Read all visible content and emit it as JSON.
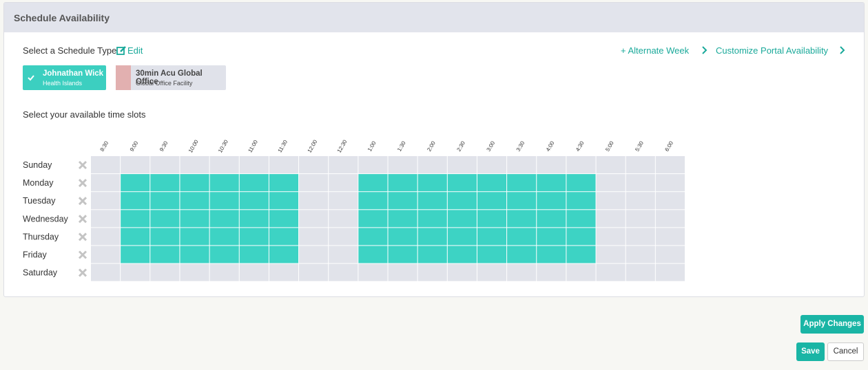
{
  "header": {
    "title": "Schedule Availability"
  },
  "schedule_type": {
    "label": "Select a Schedule Type",
    "edit": "Edit",
    "links": [
      "+ Alternate Week",
      "Customize Portal Availability"
    ],
    "options": [
      {
        "name": "Johnathan Wick",
        "subtitle": "Health Islands",
        "selected": true
      },
      {
        "name": "30min Acu Global Office",
        "subtitle": "Global Office Facility",
        "selected": false
      }
    ]
  },
  "slots": {
    "label": "Select your available time slots",
    "times": [
      "8:30",
      "9:00",
      "9:30",
      "10:00",
      "10:30",
      "11:00",
      "11:30",
      "12:00",
      "12:30",
      "1:00",
      "1:30",
      "2:00",
      "2:30",
      "3:00",
      "3:30",
      "4:00",
      "4:30",
      "5:00",
      "5:30",
      "6:00"
    ],
    "days": [
      {
        "name": "Sunday",
        "selected": [
          0,
          0,
          0,
          0,
          0,
          0,
          0,
          0,
          0,
          0,
          0,
          0,
          0,
          0,
          0,
          0,
          0,
          0,
          0,
          0
        ]
      },
      {
        "name": "Monday",
        "selected": [
          0,
          1,
          1,
          1,
          1,
          1,
          1,
          0,
          0,
          1,
          1,
          1,
          1,
          1,
          1,
          1,
          1,
          0,
          0,
          0
        ]
      },
      {
        "name": "Tuesday",
        "selected": [
          0,
          1,
          1,
          1,
          1,
          1,
          1,
          0,
          0,
          1,
          1,
          1,
          1,
          1,
          1,
          1,
          1,
          0,
          0,
          0
        ]
      },
      {
        "name": "Wednesday",
        "selected": [
          0,
          1,
          1,
          1,
          1,
          1,
          1,
          0,
          0,
          1,
          1,
          1,
          1,
          1,
          1,
          1,
          1,
          0,
          0,
          0
        ]
      },
      {
        "name": "Thursday",
        "selected": [
          0,
          1,
          1,
          1,
          1,
          1,
          1,
          0,
          0,
          1,
          1,
          1,
          1,
          1,
          1,
          1,
          1,
          0,
          0,
          0
        ]
      },
      {
        "name": "Friday",
        "selected": [
          0,
          1,
          1,
          1,
          1,
          1,
          1,
          0,
          0,
          1,
          1,
          1,
          1,
          1,
          1,
          1,
          1,
          0,
          0,
          0
        ]
      },
      {
        "name": "Saturday",
        "selected": [
          0,
          0,
          0,
          0,
          0,
          0,
          0,
          0,
          0,
          0,
          0,
          0,
          0,
          0,
          0,
          0,
          0,
          0,
          0,
          0
        ]
      }
    ]
  },
  "buttons": {
    "apply": "Apply Changes",
    "save": "Save",
    "cancel": "Cancel"
  }
}
